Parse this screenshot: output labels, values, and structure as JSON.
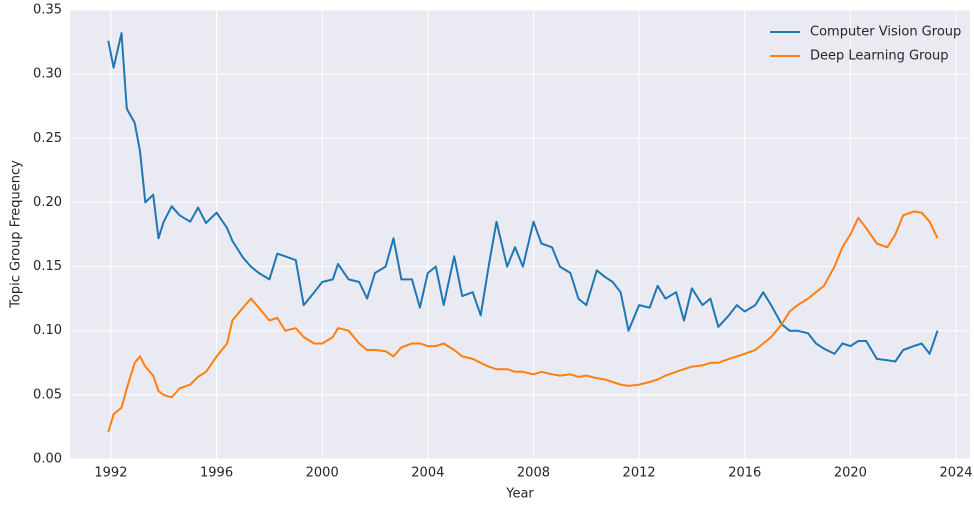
{
  "chart_data": {
    "type": "line",
    "xlabel": "Year",
    "ylabel": "Topic Group Frequency",
    "x": [
      1991.9,
      1992.1,
      1992.4,
      1992.6,
      1992.9,
      1993.1,
      1993.3,
      1993.6,
      1993.8,
      1994.0,
      1994.3,
      1994.6,
      1995.0,
      1995.3,
      1995.6,
      1996.0,
      1996.4,
      1996.6,
      1997.0,
      1997.3,
      1997.6,
      1998.0,
      1998.3,
      1998.6,
      1999.0,
      1999.3,
      1999.7,
      2000.0,
      2000.4,
      2000.6,
      2001.0,
      2001.4,
      2001.7,
      2002.0,
      2002.4,
      2002.7,
      2003.0,
      2003.4,
      2003.7,
      2004.0,
      2004.3,
      2004.6,
      2005.0,
      2005.3,
      2005.7,
      2006.0,
      2006.3,
      2006.6,
      2007.0,
      2007.3,
      2007.6,
      2008.0,
      2008.3,
      2008.7,
      2009.0,
      2009.4,
      2009.7,
      2010.0,
      2010.4,
      2010.7,
      2011.0,
      2011.3,
      2011.6,
      2012.0,
      2012.4,
      2012.7,
      2013.0,
      2013.4,
      2013.7,
      2014.0,
      2014.4,
      2014.7,
      2015.0,
      2015.4,
      2015.7,
      2016.0,
      2016.4,
      2016.7,
      2017.0,
      2017.4,
      2017.7,
      2018.0,
      2018.4,
      2018.7,
      2019.0,
      2019.4,
      2019.7,
      2020.0,
      2020.3,
      2020.6,
      2021.0,
      2021.4,
      2021.7,
      2022.0,
      2022.4,
      2022.7,
      2023.0,
      2023.3
    ],
    "series": [
      {
        "name": "Computer Vision Group",
        "color": "#1f77b4",
        "values": [
          0.326,
          0.305,
          0.332,
          0.273,
          0.262,
          0.24,
          0.2,
          0.206,
          0.172,
          0.185,
          0.197,
          0.19,
          0.185,
          0.196,
          0.184,
          0.192,
          0.18,
          0.17,
          0.157,
          0.15,
          0.145,
          0.14,
          0.16,
          0.158,
          0.155,
          0.12,
          0.13,
          0.138,
          0.14,
          0.152,
          0.14,
          0.138,
          0.125,
          0.145,
          0.15,
          0.172,
          0.14,
          0.14,
          0.118,
          0.145,
          0.15,
          0.12,
          0.158,
          0.127,
          0.13,
          0.112,
          0.15,
          0.185,
          0.15,
          0.165,
          0.15,
          0.185,
          0.168,
          0.165,
          0.15,
          0.145,
          0.125,
          0.12,
          0.147,
          0.142,
          0.138,
          0.13,
          0.1,
          0.12,
          0.118,
          0.135,
          0.125,
          0.13,
          0.108,
          0.133,
          0.12,
          0.125,
          0.103,
          0.112,
          0.12,
          0.115,
          0.12,
          0.13,
          0.12,
          0.105,
          0.1,
          0.1,
          0.098,
          0.09,
          0.086,
          0.082,
          0.09,
          0.088,
          0.092,
          0.092,
          0.078,
          0.077,
          0.076,
          0.085,
          0.088,
          0.09,
          0.082,
          0.1
        ]
      },
      {
        "name": "Deep Learning Group",
        "color": "#ff7f0e",
        "values": [
          0.021,
          0.035,
          0.04,
          0.055,
          0.075,
          0.08,
          0.072,
          0.065,
          0.053,
          0.05,
          0.048,
          0.055,
          0.058,
          0.064,
          0.068,
          0.08,
          0.09,
          0.108,
          0.118,
          0.125,
          0.118,
          0.108,
          0.11,
          0.1,
          0.102,
          0.095,
          0.09,
          0.09,
          0.095,
          0.102,
          0.1,
          0.09,
          0.085,
          0.085,
          0.084,
          0.08,
          0.087,
          0.09,
          0.09,
          0.088,
          0.088,
          0.09,
          0.085,
          0.08,
          0.078,
          0.075,
          0.072,
          0.07,
          0.07,
          0.068,
          0.068,
          0.066,
          0.068,
          0.066,
          0.065,
          0.066,
          0.064,
          0.065,
          0.063,
          0.062,
          0.06,
          0.058,
          0.057,
          0.058,
          0.06,
          0.062,
          0.065,
          0.068,
          0.07,
          0.072,
          0.073,
          0.075,
          0.075,
          0.078,
          0.08,
          0.082,
          0.085,
          0.09,
          0.095,
          0.105,
          0.115,
          0.12,
          0.125,
          0.13,
          0.135,
          0.15,
          0.165,
          0.175,
          0.188,
          0.18,
          0.168,
          0.165,
          0.175,
          0.19,
          0.193,
          0.192,
          0.185,
          0.172
        ]
      }
    ],
    "xlim": [
      1990.45,
      2024.53
    ],
    "xticks": [
      1992,
      1996,
      2000,
      2004,
      2008,
      2012,
      2016,
      2020,
      2024
    ],
    "ylim": [
      0,
      0.35
    ],
    "yticks": [
      {
        "value": 0,
        "label": "0.00"
      },
      0.05,
      {
        "value": 0.1,
        "label": "0.10"
      },
      0.15,
      {
        "value": 0.2,
        "label": "0.20"
      },
      0.25,
      {
        "value": 0.3,
        "label": "0.30"
      },
      0.35
    ],
    "grid": true,
    "legend": "upper right"
  }
}
